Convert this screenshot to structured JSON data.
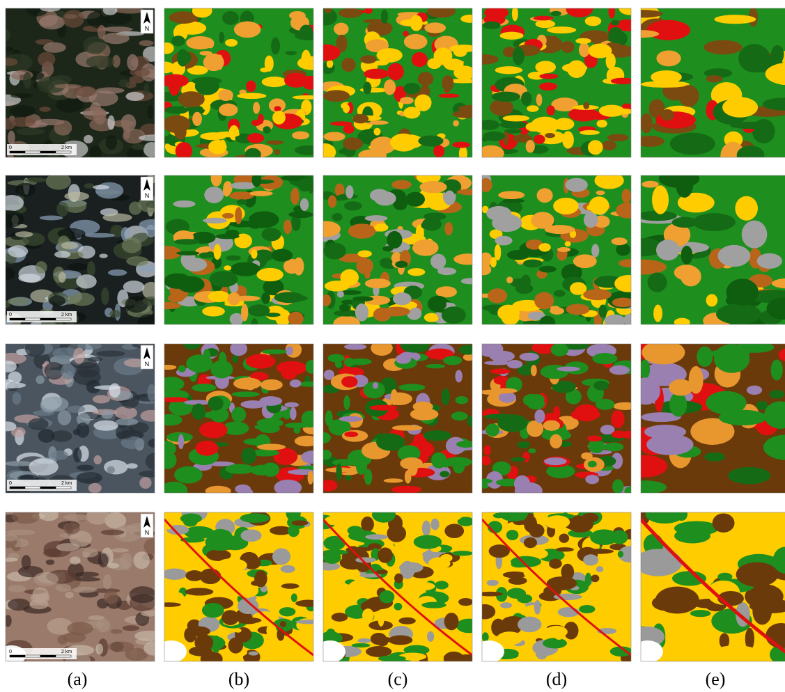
{
  "columns": [
    "(a)",
    "(b)",
    "(c)",
    "(d)",
    "(e)"
  ],
  "rows": [
    {
      "scale_start": "0",
      "scale_end": "2 km",
      "north": "N"
    },
    {
      "scale_start": "0",
      "scale_end": "2 km",
      "north": "N"
    },
    {
      "scale_start": "0",
      "scale_end": "2 km",
      "north": "N"
    },
    {
      "scale_start": "0",
      "scale_end": "2 km",
      "north": "N"
    }
  ]
}
